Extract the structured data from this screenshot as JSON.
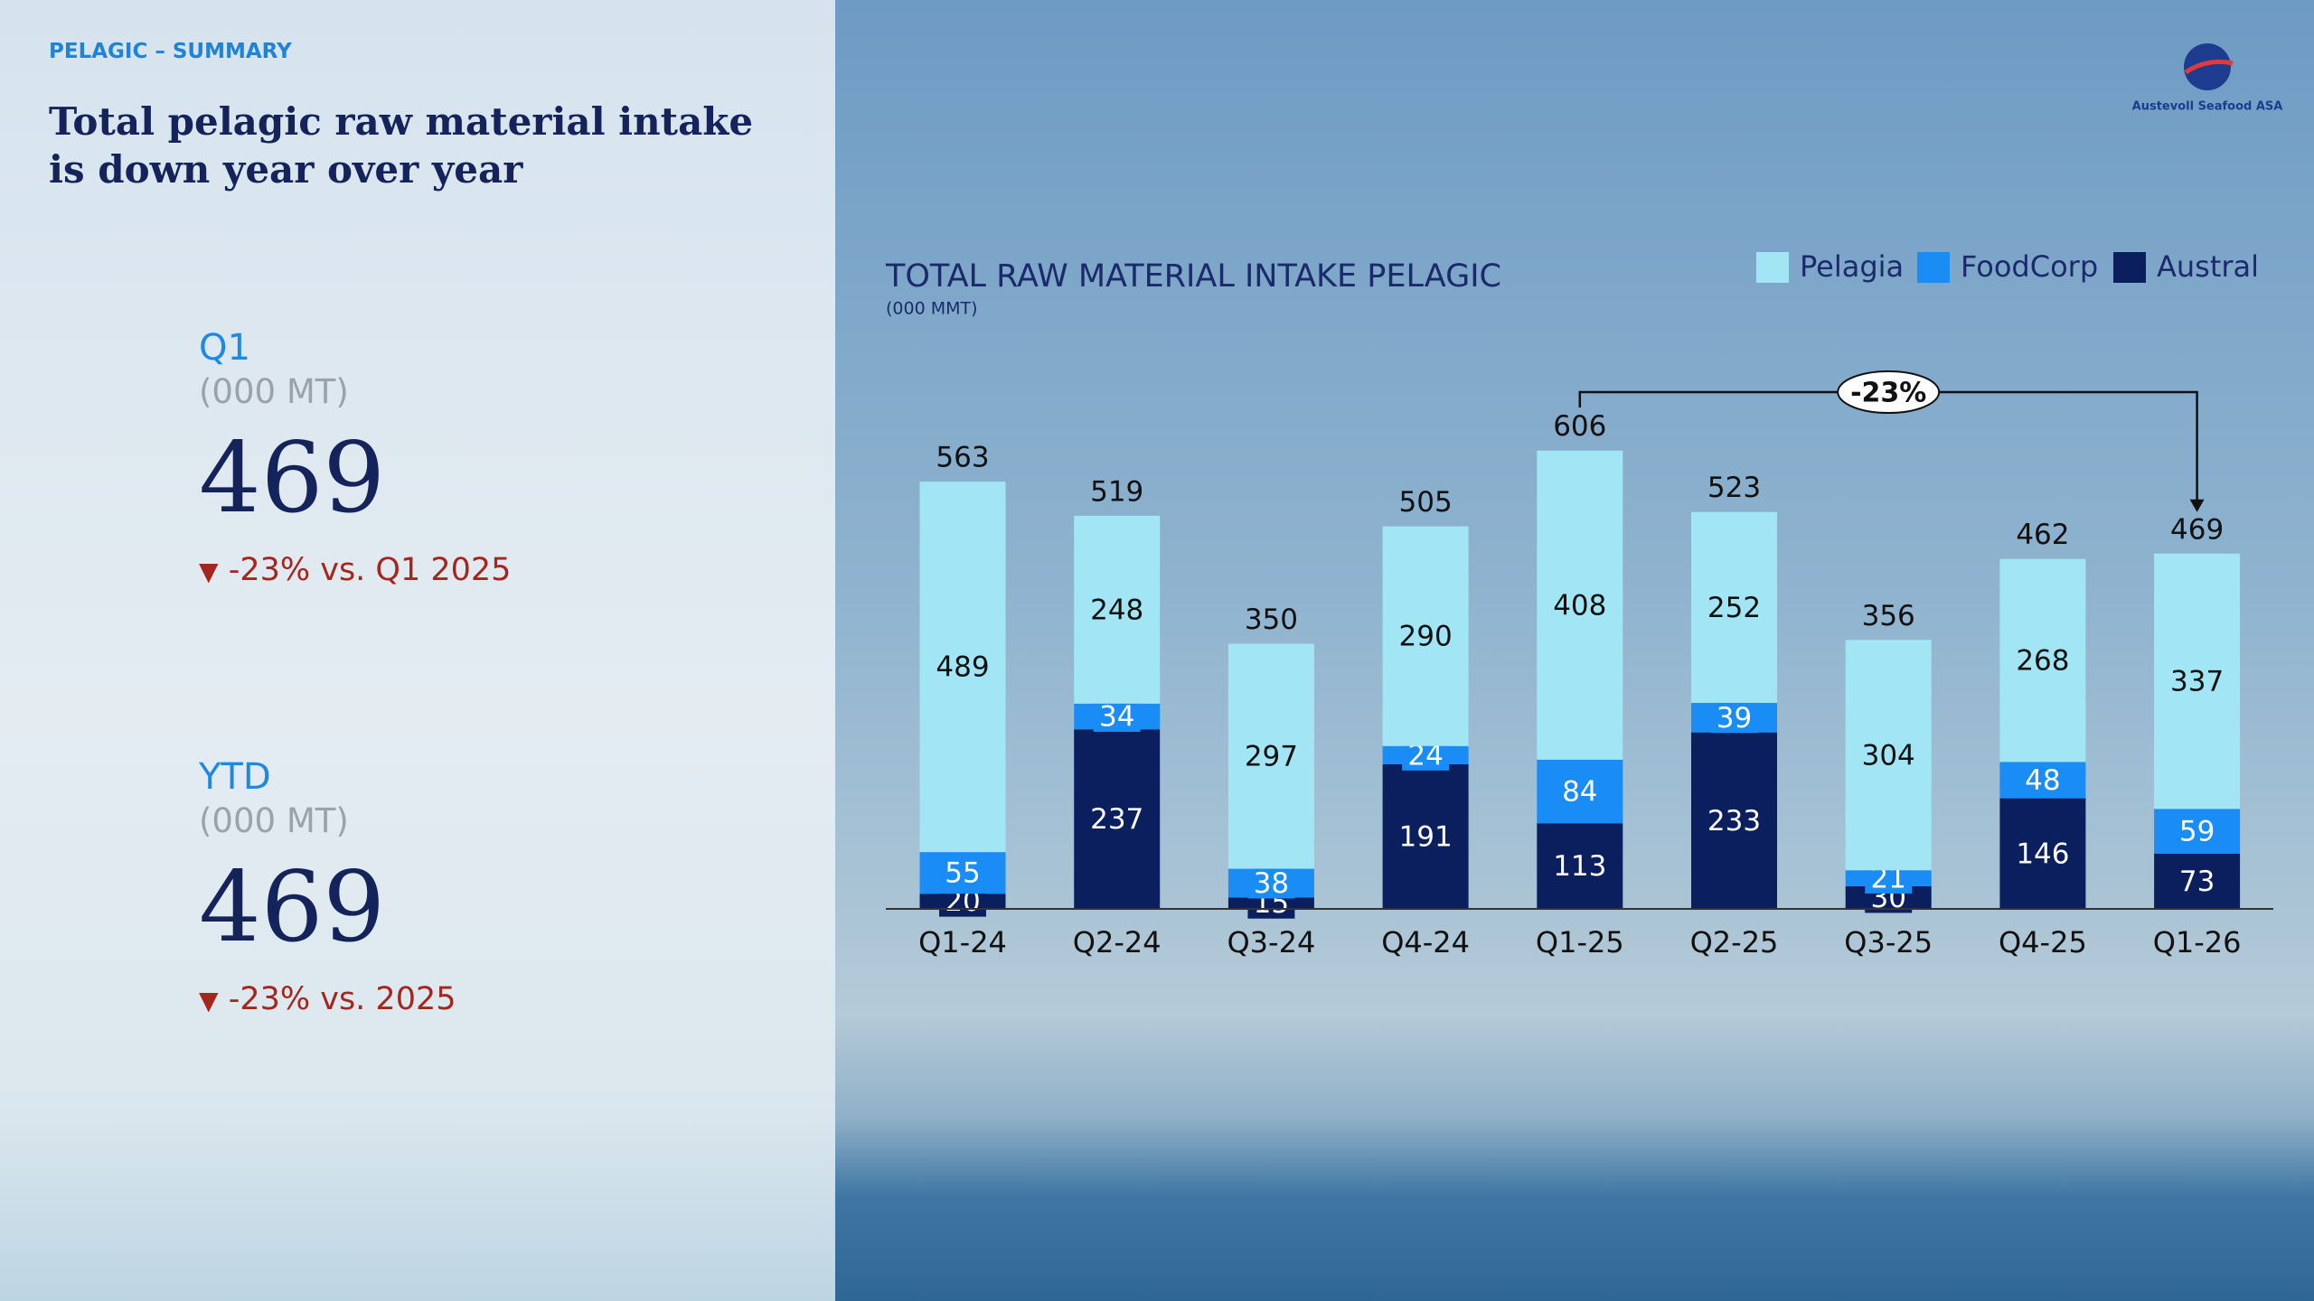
{
  "header": {
    "section": "PELAGIC – SUMMARY",
    "title": "Total pelagic raw material intake is down year over year"
  },
  "logo": {
    "text": "Austevoll Seafood ASA"
  },
  "kpis": [
    {
      "label": "Q1",
      "unit": "(000 MT)",
      "value": "469",
      "change": "-23% vs. Q1 2025"
    },
    {
      "label": "YTD",
      "unit": "(000 MT)",
      "value": "469",
      "change": "-23% vs. 2025"
    }
  ],
  "chart_data": {
    "type": "stacked-bar",
    "title": "TOTAL RAW MATERIAL INTAKE PELAGIC",
    "subtitle": "(000 MMT)",
    "categories": [
      "Q1-24",
      "Q2-24",
      "Q3-24",
      "Q4-24",
      "Q1-25",
      "Q2-25",
      "Q3-25",
      "Q4-25",
      "Q1-26"
    ],
    "series": [
      {
        "name": "Pelagia",
        "color": "#a2e6f6",
        "values": [
          489,
          248,
          297,
          290,
          408,
          252,
          304,
          268,
          337
        ]
      },
      {
        "name": "FoodCorp",
        "color": "#1a8cf5",
        "values": [
          55,
          34,
          38,
          24,
          84,
          39,
          21,
          48,
          59
        ]
      },
      {
        "name": "Austral",
        "color": "#0b1f5e",
        "values": [
          20,
          237,
          15,
          191,
          113,
          233,
          30,
          146,
          73
        ]
      }
    ],
    "total_labels": [
      "563",
      "519",
      "350",
      "505",
      "606",
      "523",
      "356",
      "462",
      "469"
    ],
    "annotation": "-23%",
    "ylim": [
      0,
      650
    ],
    "legend": "top-right"
  }
}
